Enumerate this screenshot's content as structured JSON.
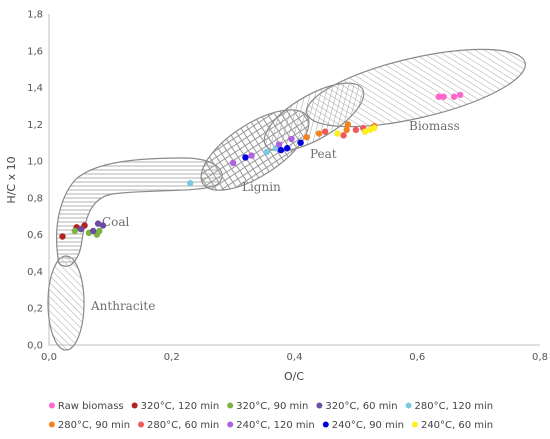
{
  "chart_data": {
    "type": "scatter",
    "title": "",
    "xlabel": "O/C",
    "ylabel": "H/C x 10",
    "xlim": [
      0,
      0.8
    ],
    "ylim": [
      0,
      1.8
    ],
    "x_ticks": [
      "0,0",
      "0,2",
      "0,4",
      "0,6",
      "0,8"
    ],
    "y_ticks": [
      "0,0",
      "0,2",
      "0,4",
      "0,6",
      "0,8",
      "1,0",
      "1,2",
      "1,4",
      "1,6",
      "1,8"
    ],
    "regions": [
      {
        "name": "Anthracite",
        "label": "Anthracite"
      },
      {
        "name": "Coal",
        "label": "Coal"
      },
      {
        "name": "Lignin",
        "label": "Lignin"
      },
      {
        "name": "Peat",
        "label": "Peat"
      },
      {
        "name": "Biomass",
        "label": "Biomass"
      }
    ],
    "legend_position": "bottom",
    "series": [
      {
        "name": "Raw biomass",
        "color": "#ff66cc",
        "points": [
          [
            0.635,
            1.35
          ],
          [
            0.643,
            1.35
          ],
          [
            0.66,
            1.35
          ],
          [
            0.67,
            1.36
          ]
        ]
      },
      {
        "name": "320°C, 120 min",
        "color": "#b22222",
        "points": [
          [
            0.022,
            0.59
          ],
          [
            0.045,
            0.64
          ],
          [
            0.058,
            0.65
          ]
        ]
      },
      {
        "name": "320°C, 90 min",
        "color": "#7cb342",
        "points": [
          [
            0.042,
            0.62
          ],
          [
            0.065,
            0.61
          ],
          [
            0.078,
            0.6
          ],
          [
            0.082,
            0.62
          ]
        ]
      },
      {
        "name": "320°C, 60 min",
        "color": "#6a4fa0",
        "points": [
          [
            0.052,
            0.63
          ],
          [
            0.072,
            0.62
          ],
          [
            0.08,
            0.66
          ],
          [
            0.088,
            0.65
          ]
        ]
      },
      {
        "name": "280°C, 120 min",
        "color": "#7ec8e3",
        "points": [
          [
            0.23,
            0.88
          ],
          [
            0.355,
            1.05
          ],
          [
            0.37,
            1.07
          ]
        ]
      },
      {
        "name": "280°C, 90 min",
        "color": "#f58220",
        "points": [
          [
            0.42,
            1.13
          ],
          [
            0.44,
            1.15
          ],
          [
            0.485,
            1.17
          ],
          [
            0.487,
            1.2
          ],
          [
            0.53,
            1.19
          ]
        ]
      },
      {
        "name": "280°C, 60 min",
        "color": "#f05a5a",
        "points": [
          [
            0.45,
            1.16
          ],
          [
            0.48,
            1.14
          ],
          [
            0.5,
            1.17
          ],
          [
            0.512,
            1.18
          ]
        ]
      },
      {
        "name": "240°C, 120 min",
        "color": "#b061e0",
        "points": [
          [
            0.3,
            0.99
          ],
          [
            0.33,
            1.03
          ],
          [
            0.375,
            1.09
          ],
          [
            0.395,
            1.12
          ]
        ]
      },
      {
        "name": "240°C, 90 min",
        "color": "#0000dd",
        "points": [
          [
            0.32,
            1.02
          ],
          [
            0.378,
            1.06
          ],
          [
            0.388,
            1.07
          ],
          [
            0.41,
            1.1
          ]
        ]
      },
      {
        "name": "240°C, 60 min",
        "color": "#ffee22",
        "points": [
          [
            0.47,
            1.15
          ],
          [
            0.515,
            1.16
          ],
          [
            0.523,
            1.17
          ],
          [
            0.53,
            1.18
          ]
        ]
      }
    ]
  }
}
